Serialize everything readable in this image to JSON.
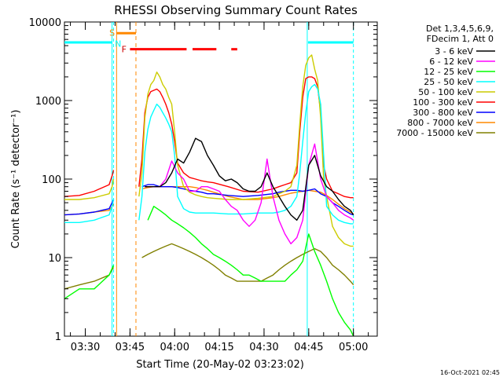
{
  "chart_data": {
    "type": "line",
    "title": "RHESSI Observing Summary Count Rates",
    "xlabel": "Start Time (20-May-02 03:23:02)",
    "ylabel": "Count Rate (s⁻¹ detector⁻¹)",
    "y_scale": "log",
    "x_unit": "minutes after 03:23:02",
    "xlim": [
      0,
      105
    ],
    "ylim": [
      1,
      10000
    ],
    "x_ticks": [
      {
        "x": 7,
        "label": "03:30"
      },
      {
        "x": 22,
        "label": "03:45"
      },
      {
        "x": 37,
        "label": "04:00"
      },
      {
        "x": 52,
        "label": "04:15"
      },
      {
        "x": 67,
        "label": "04:30"
      },
      {
        "x": 82,
        "label": "04:45"
      },
      {
        "x": 97,
        "label": "05:00"
      }
    ],
    "y_ticks": [
      {
        "y": 1,
        "label": "1"
      },
      {
        "y": 10,
        "label": "10"
      },
      {
        "y": 100,
        "label": "100"
      },
      {
        "y": 1000,
        "label": "1000"
      },
      {
        "y": 10000,
        "label": "10000"
      }
    ],
    "legend_header": [
      "Det 1,3,4,5,6,9,",
      "FDecim 1, Att 0"
    ],
    "legend_position": "right",
    "series": [
      {
        "name": "3 - 6 keV",
        "color": "#000000",
        "x": [
          0,
          5,
          10,
          16,
          17,
          24,
          27,
          30,
          32,
          34,
          36,
          38,
          40,
          42,
          44,
          46,
          48,
          50,
          52,
          54,
          56,
          58,
          60,
          62,
          64,
          66,
          68,
          70,
          72,
          74,
          76,
          78,
          80,
          82,
          84,
          86,
          88,
          90,
          92,
          94,
          96,
          97
        ],
        "y": [
          null,
          null,
          null,
          null,
          null,
          null,
          80,
          80,
          80,
          90,
          120,
          180,
          160,
          220,
          330,
          300,
          200,
          150,
          110,
          95,
          100,
          90,
          75,
          70,
          70,
          80,
          120,
          80,
          60,
          45,
          35,
          30,
          40,
          150,
          200,
          110,
          80,
          70,
          55,
          45,
          40,
          35
        ]
      },
      {
        "name": "6 - 12 keV",
        "color": "#ff00ff",
        "x": [
          0,
          5,
          10,
          16,
          17,
          24,
          27,
          30,
          32,
          34,
          36,
          38,
          40,
          42,
          44,
          46,
          48,
          50,
          52,
          54,
          56,
          58,
          60,
          62,
          64,
          66,
          68,
          70,
          72,
          74,
          76,
          78,
          80,
          82,
          84,
          86,
          88,
          90,
          92,
          94,
          96,
          97
        ],
        "y": [
          null,
          null,
          null,
          null,
          null,
          null,
          80,
          80,
          80,
          100,
          170,
          120,
          100,
          70,
          70,
          80,
          80,
          75,
          70,
          55,
          45,
          40,
          30,
          25,
          30,
          50,
          180,
          60,
          30,
          20,
          15,
          18,
          30,
          150,
          280,
          100,
          60,
          50,
          40,
          35,
          32,
          30
        ]
      },
      {
        "name": "12 - 25 keV",
        "color": "#00ff00",
        "x": [
          0,
          5,
          10,
          15,
          16.5,
          17,
          24,
          26,
          28,
          30,
          32,
          34,
          36,
          38,
          40,
          42,
          44,
          46,
          48,
          50,
          52,
          54,
          56,
          58,
          60,
          62,
          64,
          66,
          68,
          70,
          72,
          74,
          76,
          78,
          80,
          82,
          84,
          86,
          88,
          90,
          92,
          94,
          96,
          97
        ],
        "y": [
          3,
          4,
          4,
          6,
          8,
          null,
          null,
          null,
          30,
          45,
          40,
          35,
          30,
          27,
          24,
          21,
          18,
          15,
          13,
          11,
          10,
          9,
          8,
          7,
          6,
          6,
          5.5,
          5,
          5,
          5,
          5,
          5,
          6,
          7,
          9,
          20,
          12,
          8,
          5,
          3,
          2,
          1.5,
          1.2,
          1
        ]
      },
      {
        "name": "25 - 50 keV",
        "color": "#00ffff",
        "x": [
          0,
          5,
          10,
          15,
          16,
          16.5,
          17,
          24,
          25,
          26,
          27,
          28,
          29,
          30,
          31,
          32,
          33,
          34,
          35,
          36,
          37,
          38,
          40,
          42,
          44,
          46,
          48,
          50,
          55,
          60,
          65,
          70,
          72,
          74,
          76,
          78,
          79,
          80,
          81,
          82,
          83,
          84,
          85,
          86,
          87,
          88,
          90,
          92,
          94,
          96,
          97
        ],
        "y": [
          28,
          28,
          30,
          35,
          45,
          55,
          null,
          null,
          30,
          60,
          220,
          430,
          620,
          750,
          900,
          820,
          700,
          600,
          500,
          400,
          200,
          60,
          42,
          38,
          37,
          37,
          37,
          37,
          36,
          36,
          37,
          37,
          38,
          40,
          45,
          60,
          120,
          300,
          700,
          1300,
          1500,
          1600,
          1400,
          900,
          200,
          45,
          35,
          30,
          28,
          27,
          27
        ]
      },
      {
        "name": "50 - 100 keV",
        "color": "#cccc00",
        "x": [
          0,
          5,
          10,
          15,
          16,
          16.5,
          17,
          24,
          25,
          26,
          27,
          28,
          29,
          30,
          31,
          32,
          33,
          34,
          35,
          36,
          37,
          38,
          40,
          42,
          44,
          46,
          48,
          50,
          55,
          60,
          65,
          70,
          72,
          74,
          76,
          78,
          79,
          80,
          81,
          82,
          83,
          84,
          85,
          86,
          87,
          88,
          90,
          92,
          94,
          96,
          97
        ],
        "y": [
          55,
          55,
          58,
          65,
          80,
          100,
          null,
          null,
          60,
          120,
          600,
          1200,
          1600,
          1800,
          2300,
          2000,
          1600,
          1400,
          1100,
          900,
          400,
          150,
          80,
          68,
          63,
          60,
          58,
          57,
          55,
          55,
          57,
          60,
          65,
          70,
          80,
          150,
          500,
          1500,
          2800,
          3500,
          3800,
          2500,
          1800,
          600,
          100,
          60,
          25,
          18,
          15,
          14,
          14
        ]
      },
      {
        "name": "100 - 300 keV",
        "color": "#ff0000",
        "x": [
          0,
          5,
          10,
          15,
          16,
          16.5,
          17,
          24,
          25,
          26,
          27,
          28,
          29,
          30,
          31,
          32,
          33,
          34,
          35,
          36,
          37,
          38,
          40,
          42,
          44,
          46,
          48,
          50,
          55,
          60,
          65,
          70,
          72,
          74,
          76,
          78,
          79,
          80,
          81,
          82,
          83,
          84,
          85,
          86,
          87,
          88,
          90,
          92,
          94,
          96,
          97
        ],
        "y": [
          60,
          62,
          70,
          85,
          110,
          130,
          null,
          null,
          80,
          180,
          700,
          1100,
          1300,
          1350,
          1400,
          1300,
          1100,
          900,
          700,
          500,
          300,
          160,
          120,
          105,
          100,
          95,
          92,
          90,
          80,
          70,
          68,
          75,
          80,
          85,
          90,
          120,
          400,
          1100,
          1900,
          2000,
          2000,
          1900,
          1500,
          700,
          150,
          100,
          70,
          65,
          60,
          58,
          58
        ]
      },
      {
        "name": "300 - 800 keV",
        "color": "#0000ff",
        "x": [
          0,
          5,
          10,
          15,
          16,
          16.5,
          17,
          24,
          26,
          28,
          30,
          32,
          34,
          36,
          38,
          40,
          42,
          44,
          46,
          48,
          50,
          55,
          60,
          65,
          70,
          72,
          74,
          76,
          78,
          80,
          82,
          84,
          86,
          88,
          90,
          92,
          94,
          96,
          97
        ],
        "y": [
          35,
          36,
          38,
          42,
          50,
          55,
          null,
          null,
          80,
          85,
          85,
          80,
          80,
          80,
          78,
          75,
          72,
          70,
          68,
          65,
          65,
          62,
          60,
          62,
          65,
          68,
          70,
          72,
          72,
          70,
          72,
          75,
          65,
          60,
          50,
          45,
          40,
          36,
          35
        ]
      },
      {
        "name": "800 - 7000 keV",
        "color": "#ff8800",
        "x": [
          0,
          5,
          10,
          15,
          16,
          16.5,
          17,
          24,
          26,
          28,
          30,
          32,
          34,
          36,
          38,
          40,
          42,
          44,
          46,
          48,
          50,
          55,
          60,
          65,
          70,
          72,
          74,
          76,
          78,
          80,
          82,
          84,
          86,
          88,
          90,
          92,
          94,
          96,
          97
        ],
        "y": [
          35,
          36,
          38,
          40,
          45,
          48,
          null,
          null,
          75,
          78,
          80,
          80,
          80,
          80,
          80,
          80,
          80,
          78,
          75,
          72,
          68,
          60,
          55,
          55,
          58,
          60,
          63,
          66,
          68,
          70,
          72,
          70,
          68,
          62,
          55,
          48,
          42,
          38,
          36
        ]
      },
      {
        "name": "7000 - 15000 keV",
        "color": "#808000",
        "x": [
          0,
          5,
          10,
          15,
          16,
          16.5,
          17,
          24,
          26,
          28,
          30,
          32,
          34,
          36,
          38,
          40,
          42,
          44,
          46,
          48,
          50,
          52,
          54,
          56,
          58,
          60,
          62,
          64,
          66,
          68,
          70,
          72,
          74,
          76,
          78,
          80,
          82,
          84,
          86,
          88,
          90,
          92,
          94,
          96,
          97
        ],
        "y": [
          4,
          4.5,
          5,
          6,
          7,
          7.5,
          null,
          null,
          10,
          11,
          12,
          13,
          14,
          15,
          14,
          13,
          12,
          11,
          10,
          9,
          8,
          7,
          6,
          5.5,
          5,
          5,
          5,
          5,
          5,
          5.5,
          6,
          7,
          8,
          9,
          10,
          11,
          12,
          13,
          12,
          10,
          8,
          7,
          6,
          5,
          4.5
        ]
      }
    ],
    "attenuator_annotations": [
      {
        "label": "S",
        "color": "#ff8800"
      },
      {
        "label": "N",
        "color": "#00ffff"
      },
      {
        "label": "F",
        "color": "#cc0000"
      }
    ],
    "flare_segments": [
      [
        22,
        41
      ],
      [
        43,
        51
      ],
      [
        56,
        58
      ]
    ],
    "eclipse_start_x": 16.5,
    "eclipse_end_x": 81.5,
    "saa_start_x": 17.5,
    "saa_end_x": 24
  },
  "footer": {
    "timestamp": "16-Oct-2021 02:45"
  }
}
